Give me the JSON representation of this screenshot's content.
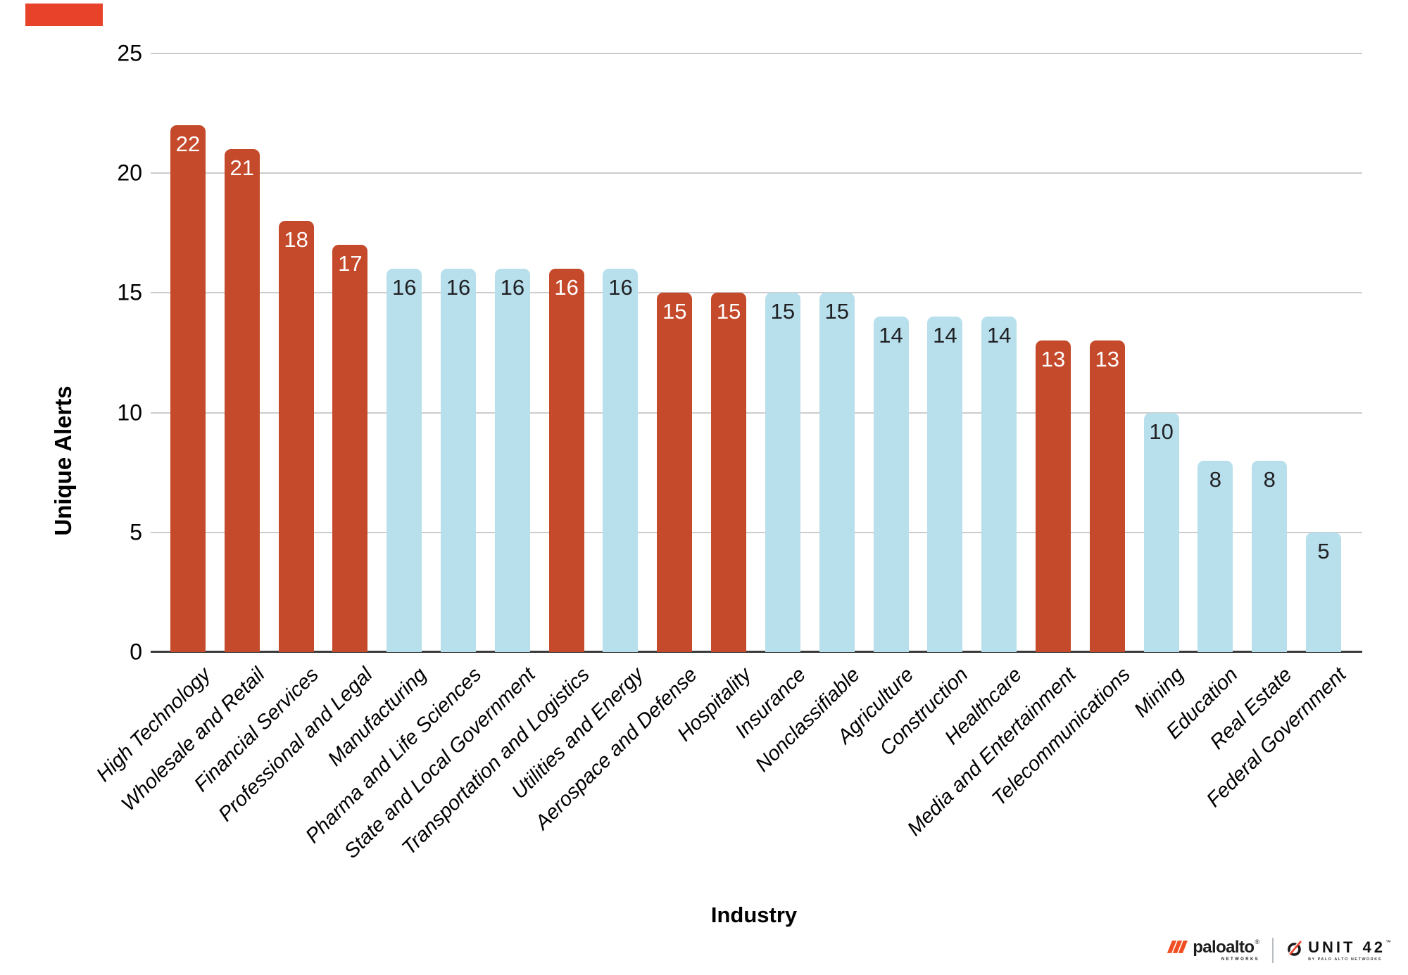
{
  "accent_bar": {
    "color": "#E8432A"
  },
  "chart_data": {
    "type": "bar",
    "title": "",
    "xlabel": "Industry",
    "ylabel": "Unique Alerts",
    "ylim": [
      0,
      25
    ],
    "yticks": [
      0,
      5,
      10,
      15,
      20,
      25
    ],
    "grid": true,
    "legend_position": "none",
    "bar_value_labels_shown": true,
    "categories": [
      "High Technology",
      "Wholesale and Retail",
      "Financial Services",
      "Professional and Legal",
      "Manufacturing",
      "Pharma and Life Sciences",
      "State and Local Government",
      "Transportation and Logistics",
      "Utilities and Energy",
      "Aerospace and Defense",
      "Hospitality",
      "Insurance",
      "Nonclassifiable",
      "Agriculture",
      "Construction",
      "Healthcare",
      "Media and Entertainment",
      "Telecommunications",
      "Mining",
      "Education",
      "Real Estate",
      "Federal Government"
    ],
    "values": [
      22,
      21,
      18,
      17,
      16,
      16,
      16,
      16,
      16,
      15,
      15,
      15,
      15,
      14,
      14,
      14,
      13,
      13,
      10,
      8,
      8,
      5
    ],
    "point_colors": [
      "red",
      "red",
      "red",
      "red",
      "blue",
      "blue",
      "blue",
      "red",
      "blue",
      "red",
      "red",
      "blue",
      "blue",
      "blue",
      "blue",
      "blue",
      "red",
      "red",
      "blue",
      "blue",
      "blue",
      "blue"
    ],
    "palette": {
      "red": "#C5492B",
      "blue": "#B8DFEC"
    },
    "value_label_colors": {
      "red": "#FFFFFF",
      "blue": "#202124"
    }
  },
  "branding": {
    "paloalto": {
      "wordmark": "paloalto",
      "registered_mark": "®",
      "subtext": "NETWORKS",
      "icon_color": "#F04E23"
    },
    "unit42": {
      "wordmark": "UNIT 42",
      "trademark": "™",
      "subtext": "BY PALO ALTO NETWORKS",
      "accent_color": "#E8432A"
    }
  }
}
